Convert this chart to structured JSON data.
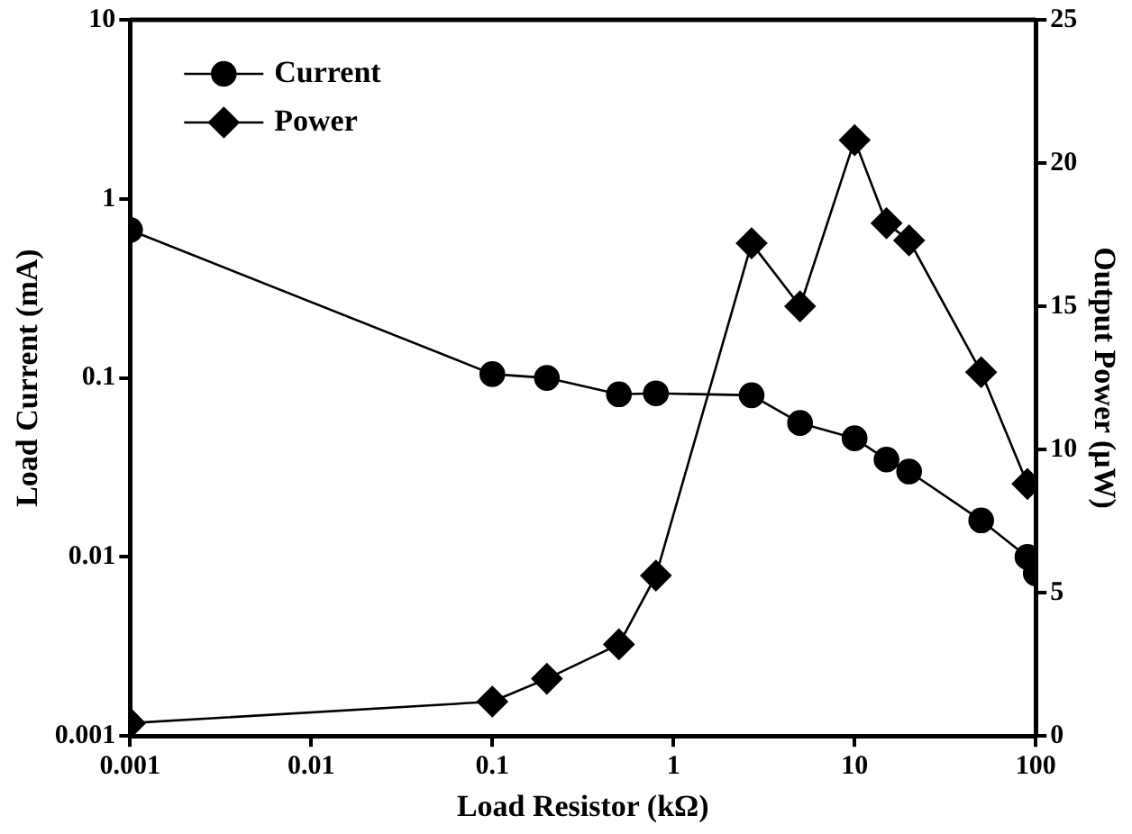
{
  "chart_data": {
    "type": "line",
    "xlabel": "Load Resistor (kΩ)",
    "ylabel": "Load Current (mA)",
    "y2label": "Output Power (μW)",
    "log": "xy",
    "x": [
      0.001,
      0.1,
      0.2,
      0.5,
      0.8,
      2.7,
      5,
      10,
      15,
      20,
      50,
      90,
      100
    ],
    "series": [
      {
        "name": "Current",
        "color": "#000000",
        "marker": "circle",
        "values": [
          0.67,
          0.105,
          0.1,
          0.081,
          0.082,
          0.08,
          0.056,
          0.046,
          0.035,
          0.03,
          0.016,
          0.01,
          0.0081
        ]
      },
      {
        "name": "Power",
        "color": "#000000",
        "marker": "diamond",
        "axis": "y2",
        "values": [
          0.45,
          1.2,
          2.0,
          3.2,
          5.6,
          17.2,
          15.0,
          20.8,
          17.9,
          17.3,
          12.7,
          8.8,
          null
        ]
      }
    ],
    "xlim": [
      0.001,
      100
    ],
    "xticks": [
      0.001,
      0.01,
      0.1,
      1,
      10,
      100
    ],
    "ylim": [
      0.001,
      10
    ],
    "yticks": [
      0.001,
      0.01,
      0.1,
      1,
      10
    ],
    "y2lim": [
      0,
      25
    ],
    "y2ticks": [
      0,
      5,
      10,
      15,
      20,
      25
    ],
    "grid": false,
    "legend": "top left",
    "line_style": "solid"
  }
}
